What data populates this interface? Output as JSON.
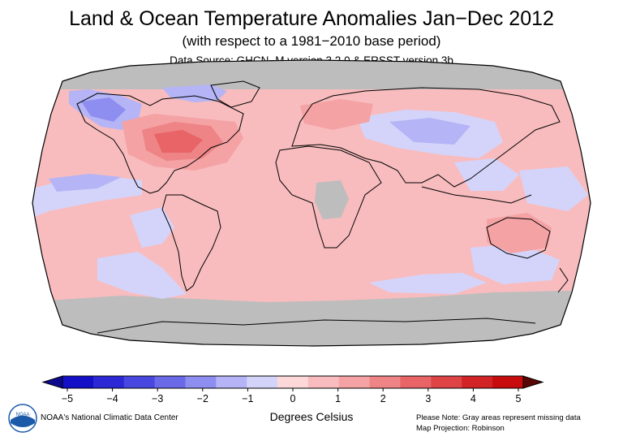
{
  "header": {
    "title": "Land & Ocean Temperature Anomalies Jan−Dec 2012",
    "subtitle": "(with respect to a 1981−2010 base period)",
    "source": "Data Source: GHCN−M version 3.2.0 & ERSST version 3b"
  },
  "map": {
    "projection": "Robinson",
    "missing_color": "#bdbdbd",
    "ocean_default_color": "#f8bcbe"
  },
  "colorbar": {
    "unit_label": "Degrees Celsius",
    "ticks": [
      "−5",
      "−4",
      "−3",
      "−2",
      "−1",
      "0",
      "1",
      "2",
      "3",
      "4",
      "5"
    ],
    "min": -5,
    "max": 5,
    "colors": [
      "#1410c8",
      "#2c28d6",
      "#4848e0",
      "#6a6ae8",
      "#8e8ef0",
      "#b4b4f6",
      "#d4d4fb",
      "#fcd8d8",
      "#f8bcbe",
      "#f4a2a4",
      "#ee8486",
      "#e86466",
      "#de4446",
      "#d22426",
      "#c80c0e"
    ],
    "under_color": "#0e0a90",
    "over_color": "#5a0606"
  },
  "footer": {
    "logo_text": "NOAA",
    "credit": "NOAA's National Climatic Data Center",
    "note_line1": "Please Note: Gray areas represent missing data",
    "note_line2": "Map Projection: Robinson"
  },
  "colors": {
    "coastline": "#000000",
    "logo_blue": "#1b5aa8"
  }
}
